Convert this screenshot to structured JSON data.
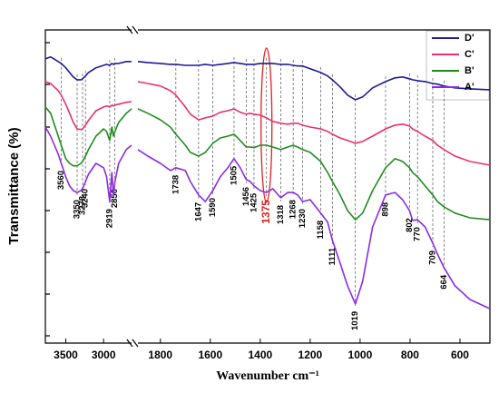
{
  "chart_data": {
    "type": "line",
    "xlabel": "Wavenumber cm⁻¹",
    "ylabel": "Transmittance (%)",
    "x_segments": [
      [
        3770,
        2630
      ],
      [
        1890,
        480
      ]
    ],
    "xticks": [
      3500,
      3000,
      1800,
      1600,
      1400,
      1200,
      1000,
      800,
      600
    ],
    "ylim": [
      0,
      100
    ],
    "legend": "upper right",
    "x": [
      3770,
      3700,
      3600,
      3560,
      3500,
      3450,
      3400,
      3350,
      3300,
      3278,
      3240,
      3200,
      3100,
      3000,
      2960,
      2919,
      2890,
      2870,
      2850,
      2800,
      2700,
      2630,
      1890,
      1850,
      1800,
      1760,
      1738,
      1700,
      1680,
      1647,
      1620,
      1590,
      1560,
      1530,
      1505,
      1480,
      1456,
      1440,
      1425,
      1400,
      1375,
      1350,
      1318,
      1290,
      1268,
      1250,
      1230,
      1200,
      1158,
      1130,
      1111,
      1080,
      1050,
      1019,
      990,
      950,
      898,
      860,
      830,
      802,
      790,
      770,
      740,
      709,
      690,
      664,
      620,
      560,
      480
    ],
    "series": [
      {
        "name": "D'",
        "color": "#1c1c96",
        "values": [
          90.8,
          91.4,
          89.9,
          89.3,
          87.9,
          86.4,
          85.0,
          84.1,
          84.1,
          84.4,
          85.3,
          86.4,
          87.9,
          88.7,
          89.0,
          88.7,
          89.3,
          89.0,
          89.3,
          89.3,
          89.9,
          89.9,
          89.9,
          89.6,
          89.3,
          89.0,
          89.0,
          88.7,
          88.7,
          88.7,
          89.0,
          88.7,
          89.0,
          89.3,
          89.6,
          89.3,
          89.0,
          89.0,
          89.0,
          89.3,
          89.3,
          89.3,
          89.0,
          89.0,
          88.7,
          88.5,
          88.5,
          87.6,
          86.4,
          85.3,
          84.1,
          81.8,
          79.2,
          77.7,
          78.6,
          81.5,
          83.5,
          84.7,
          85.0,
          84.4,
          84.1,
          83.8,
          83.5,
          82.9,
          82.7,
          82.1,
          81.5,
          81.2,
          80.9
        ]
      },
      {
        "name": "C'",
        "color": "#e8306e",
        "values": [
          83.5,
          82.9,
          80.6,
          79.2,
          76.3,
          73.4,
          70.5,
          68.4,
          68.2,
          68.4,
          69.6,
          71.1,
          74.2,
          75.4,
          75.7,
          75.4,
          76.0,
          75.7,
          76.0,
          76.3,
          76.9,
          77.1,
          83.5,
          82.9,
          82.1,
          80.6,
          79.2,
          75.4,
          73.1,
          71.3,
          71.9,
          72.5,
          73.7,
          74.2,
          74.8,
          73.7,
          73.1,
          73.4,
          73.1,
          72.8,
          71.9,
          70.8,
          70.2,
          69.9,
          70.2,
          70.2,
          69.6,
          69.0,
          68.4,
          67.6,
          66.7,
          65.5,
          64.7,
          63.8,
          64.4,
          66.1,
          68.4,
          69.6,
          69.9,
          69.3,
          68.4,
          67.6,
          66.1,
          64.7,
          63.2,
          61.8,
          59.7,
          58.0,
          56.8
        ]
      },
      {
        "name": "B'",
        "color": "#1f8c1f",
        "values": [
          75.4,
          73.4,
          66.1,
          63.2,
          58.9,
          57.4,
          56.6,
          56.6,
          57.4,
          58.0,
          59.7,
          61.8,
          66.1,
          68.4,
          67.6,
          64.7,
          69.0,
          66.1,
          67.6,
          70.5,
          73.4,
          74.8,
          74.8,
          73.4,
          71.3,
          69.0,
          66.7,
          63.2,
          60.9,
          59.7,
          60.9,
          63.8,
          65.5,
          66.1,
          66.7,
          64.7,
          62.6,
          62.6,
          62.4,
          63.2,
          63.2,
          62.6,
          61.8,
          62.6,
          63.2,
          62.6,
          61.8,
          60.9,
          58.0,
          54.5,
          51.6,
          47.3,
          42.3,
          39.4,
          41.5,
          48.7,
          56.0,
          58.9,
          58.0,
          56.0,
          54.5,
          53.1,
          50.2,
          47.3,
          45.2,
          43.5,
          41.5,
          40.0,
          39.4
        ]
      },
      {
        "name": "A'",
        "color": "#8b2be2",
        "values": [
          69.0,
          66.1,
          60.3,
          57.4,
          53.1,
          50.2,
          48.7,
          48.1,
          48.7,
          49.3,
          51.6,
          53.9,
          57.4,
          56.0,
          53.1,
          45.2,
          54.5,
          47.3,
          51.6,
          57.4,
          61.8,
          63.2,
          61.8,
          59.7,
          57.4,
          55.1,
          56.0,
          55.1,
          51.6,
          47.3,
          45.2,
          48.7,
          53.1,
          56.0,
          58.9,
          56.0,
          52.2,
          51.6,
          50.2,
          48.7,
          48.1,
          49.3,
          46.4,
          48.1,
          48.1,
          47.3,
          45.2,
          45.8,
          41.5,
          38.6,
          32.8,
          25.5,
          18.3,
          12.5,
          19.7,
          37.1,
          47.3,
          48.1,
          45.8,
          42.3,
          39.2,
          39.4,
          37.1,
          31.9,
          28.4,
          24.1,
          18.3,
          13.9,
          11.0
        ]
      }
    ],
    "peaks": [
      {
        "x": 3560
      },
      {
        "x": 3350
      },
      {
        "x": 3278
      },
      {
        "x": 3240
      },
      {
        "x": 2919
      },
      {
        "x": 2850
      },
      {
        "x": 1738
      },
      {
        "x": 1647
      },
      {
        "x": 1590
      },
      {
        "x": 1505
      },
      {
        "x": 1456
      },
      {
        "x": 1425
      },
      {
        "x": 1375,
        "color": "#e02020"
      },
      {
        "x": 1318
      },
      {
        "x": 1268
      },
      {
        "x": 1230
      },
      {
        "x": 1158
      },
      {
        "x": 1111
      },
      {
        "x": 1019
      },
      {
        "x": 898
      },
      {
        "x": 802
      },
      {
        "x": 770
      },
      {
        "x": 709
      },
      {
        "x": 664
      }
    ]
  }
}
